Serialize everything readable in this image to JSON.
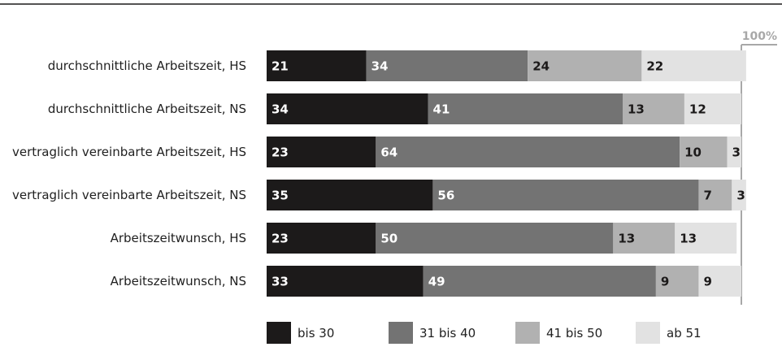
{
  "chart_data": {
    "type": "bar",
    "orientation": "horizontal",
    "stacked": true,
    "categories": [
      "durchschnittliche Arbeitszeit, HS",
      "durchschnittliche Arbeitszeit, NS",
      "vertraglich vereinbarte Arbeitszeit, HS",
      "vertraglich vereinbarte Arbeitszeit, NS",
      "Arbeitszeitwunsch, HS",
      "Arbeitszeitwunsch, NS"
    ],
    "series": [
      {
        "name": "bis 30",
        "color": "#1c1a1a",
        "label_color": "#ffffff",
        "values": [
          21,
          34,
          23,
          35,
          23,
          33
        ]
      },
      {
        "name": "31 bis 40",
        "color": "#737373",
        "label_color": "#ffffff",
        "values": [
          34,
          41,
          64,
          56,
          50,
          49
        ]
      },
      {
        "name": "41 bis 50",
        "color": "#b1b1b1",
        "label_color": "#1c1a1a",
        "values": [
          24,
          13,
          10,
          7,
          13,
          9
        ]
      },
      {
        "name": "ab 51",
        "color": "#e2e2e2",
        "label_color": "#1c1a1a",
        "values": [
          22,
          12,
          3,
          3,
          13,
          9
        ]
      }
    ],
    "xlim": [
      0,
      100
    ],
    "scale_max_label": "100%",
    "grid": false,
    "legend_position": "bottom"
  }
}
